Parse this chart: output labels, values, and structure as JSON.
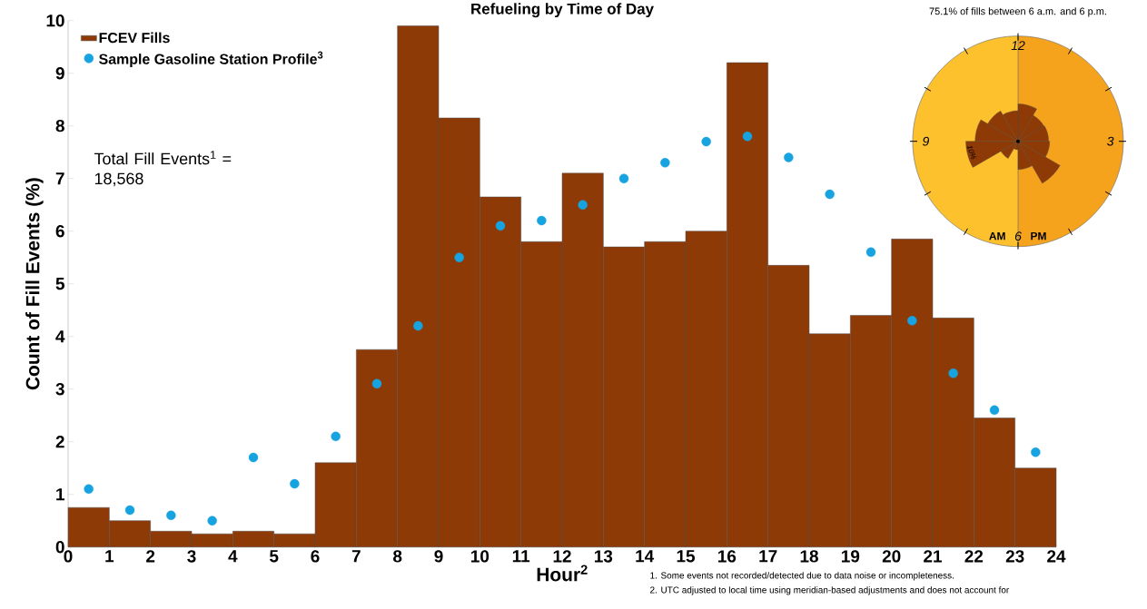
{
  "chart_data": {
    "type": "histogram",
    "title": "Refueling by Time of Day",
    "xlabel": "Hour$^{2}$",
    "ylabel": "Count of Fill Events (%)",
    "bins": [
      0,
      1,
      2,
      3,
      4,
      5,
      6,
      7,
      8,
      9,
      10,
      11,
      12,
      13,
      14,
      15,
      16,
      17,
      18,
      19,
      20,
      21,
      22,
      23,
      24
    ],
    "series": [
      {
        "name": "FCEV Fills",
        "color": "#8e3a06",
        "values": [
          0.75,
          0.5,
          0.3,
          0.25,
          0.3,
          0.25,
          1.6,
          3.75,
          9.9,
          8.15,
          6.65,
          5.8,
          7.1,
          5.7,
          5.8,
          6.0,
          9.2,
          5.35,
          4.05,
          4.4,
          5.85,
          4.35,
          2.45,
          1.5
        ]
      },
      {
        "name": "Sample Gasoline Station Profile$^{3}$",
        "type": "scatter",
        "color": "#17a3e0",
        "marker": "circle",
        "x": [
          0.5,
          1.5,
          2.5,
          3.5,
          4.5,
          5.5,
          6.5,
          7.5,
          8.5,
          9.5,
          10.5,
          11.5,
          12.5,
          13.5,
          14.5,
          15.5,
          16.5,
          17.5,
          18.5,
          19.5,
          20.5,
          21.5,
          22.5,
          23.5
        ],
        "values": [
          1.1,
          0.7,
          0.6,
          0.5,
          1.7,
          1.2,
          2.1,
          3.1,
          4.2,
          5.5,
          6.1,
          6.2,
          6.5,
          7.0,
          7.3,
          7.7,
          7.8,
          7.4,
          6.7,
          5.6,
          4.3,
          3.3,
          2.6,
          1.8
        ]
      }
    ],
    "xlim": [
      0,
      24
    ],
    "xticks": [
      0,
      1,
      2,
      3,
      4,
      5,
      6,
      7,
      8,
      9,
      10,
      11,
      12,
      13,
      14,
      15,
      16,
      17,
      18,
      19,
      20,
      21,
      22,
      23,
      24
    ],
    "ylim": [
      0,
      10
    ],
    "yticks": [
      0,
      1,
      2,
      3,
      4,
      5,
      6,
      7,
      8,
      9,
      10
    ],
    "legend": "top left",
    "grid": false,
    "annotations": [
      "Total Fill Events$^{1}$ = 18,568",
      "75.1% of fills between 6 a.m. and 6 p.m.",
      "12",
      "3",
      "6",
      "9",
      "AM",
      "PM",
      "10%",
      "1. Some events not recorded/detected due to data noise or incompleteness.",
      "2. UTC adjusted to local time using meridian-based adjustments and does not account for"
    ]
  }
}
